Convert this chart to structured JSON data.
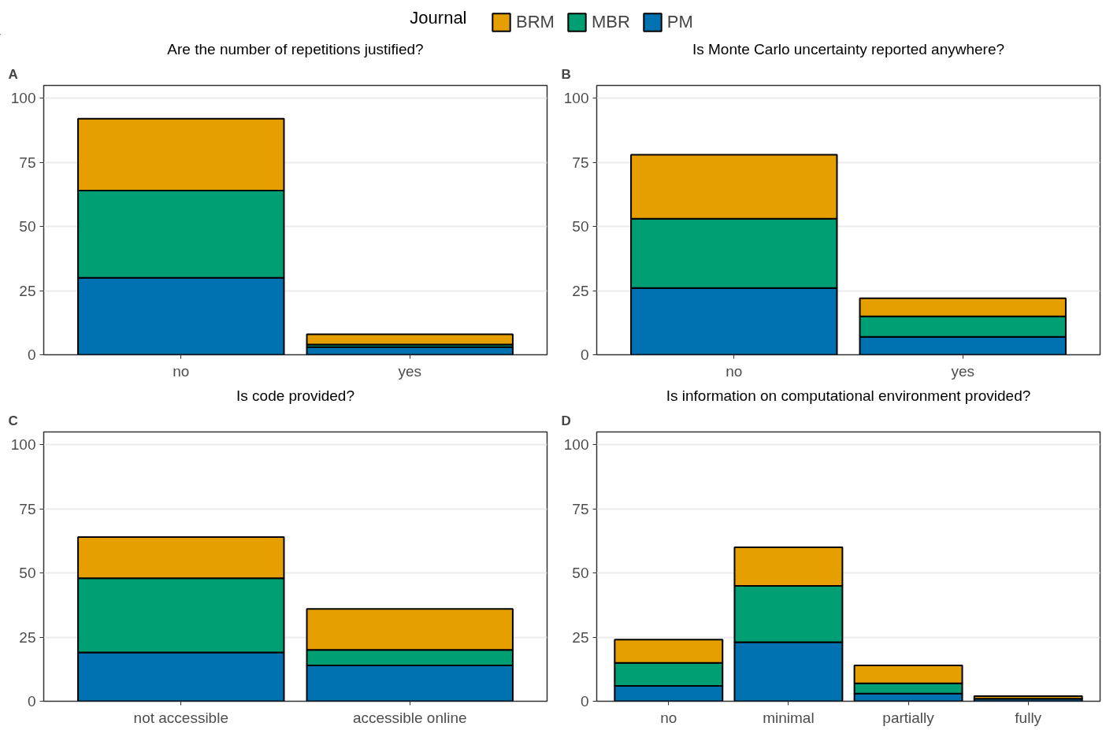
{
  "chart_data": [
    {
      "type": "bar",
      "title": "Are the number of repetitions justified?",
      "annotations": [
        "A"
      ],
      "legend_title": "Journal",
      "legend": "top",
      "stacked": true,
      "categories": [
        "no",
        "yes"
      ],
      "ylim": [
        0,
        105
      ],
      "yticks": [
        0,
        25,
        50,
        75,
        100
      ],
      "grid": "y",
      "series": [
        {
          "name": "PM",
          "color": "#0072b2",
          "values": [
            30,
            3
          ]
        },
        {
          "name": "MBR",
          "color": "#009e73",
          "values": [
            34,
            1
          ]
        },
        {
          "name": "BRM",
          "color": "#e69f00",
          "values": [
            28,
            4
          ]
        }
      ]
    },
    {
      "type": "bar",
      "title": "Is Monte Carlo uncertainty reported anywhere?",
      "annotations": [
        "B"
      ],
      "stacked": true,
      "categories": [
        "no",
        "yes"
      ],
      "ylim": [
        0,
        105
      ],
      "yticks": [
        0,
        25,
        50,
        75,
        100
      ],
      "grid": "y",
      "series": [
        {
          "color": "#0072b2",
          "values": [
            26,
            7
          ]
        },
        {
          "color": "#009e73",
          "values": [
            27,
            8
          ]
        },
        {
          "color": "#e69f00",
          "values": [
            25,
            7
          ]
        }
      ]
    },
    {
      "type": "bar",
      "title": "Is code provided?",
      "annotations": [
        "C"
      ],
      "stacked": true,
      "categories": [
        "not accessible",
        "accessible online"
      ],
      "ylim": [
        0,
        105
      ],
      "yticks": [
        0,
        25,
        50,
        75,
        100
      ],
      "grid": "y",
      "series": [
        {
          "color": "#0072b2",
          "values": [
            19,
            14
          ]
        },
        {
          "color": "#009e73",
          "values": [
            29,
            6
          ]
        },
        {
          "color": "#e69f00",
          "values": [
            16,
            16
          ]
        }
      ]
    },
    {
      "type": "bar",
      "title": "Is information on computational environment provided?",
      "annotations": [
        "D"
      ],
      "stacked": true,
      "categories": [
        "no",
        "minimal",
        "partially",
        "fully"
      ],
      "ylim": [
        0,
        105
      ],
      "yticks": [
        0,
        25,
        50,
        75,
        100
      ],
      "grid": "y",
      "series": [
        {
          "color": "#0072b2",
          "values": [
            6,
            23,
            3,
            1
          ]
        },
        {
          "color": "#009e73",
          "values": [
            9,
            22,
            4,
            0
          ]
        },
        {
          "color": "#e69f00",
          "values": [
            9,
            15,
            7,
            1
          ]
        }
      ]
    }
  ]
}
